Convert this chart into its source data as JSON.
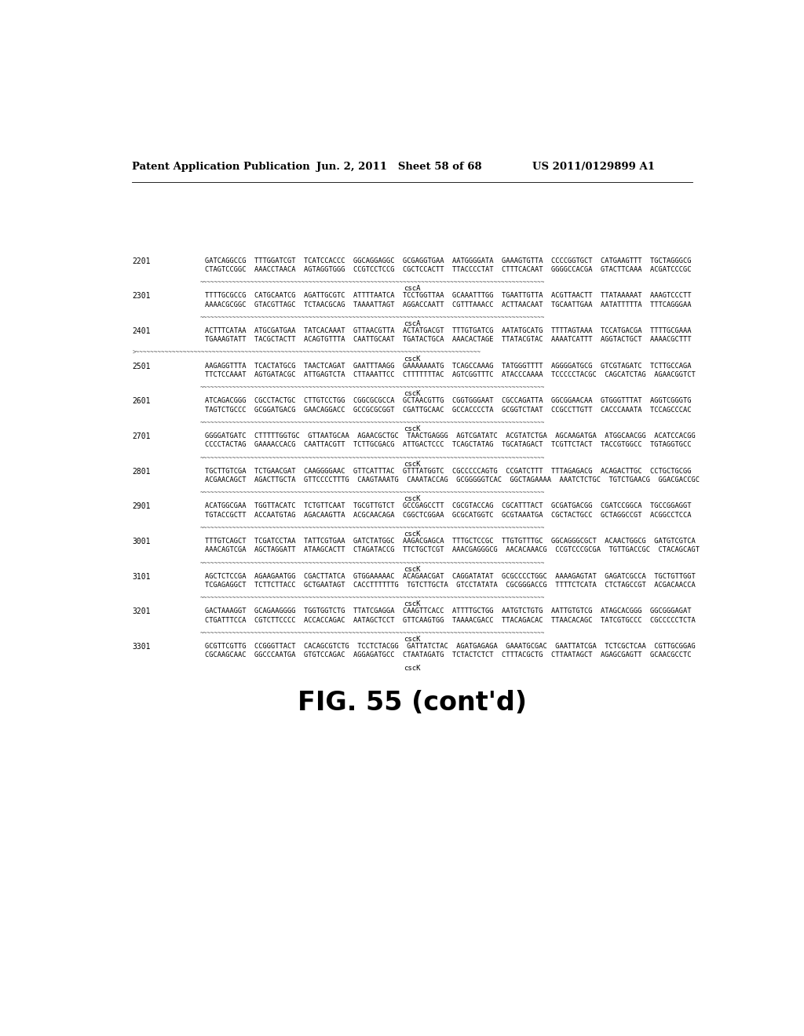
{
  "header_left": "Patent Application Publication",
  "header_mid": "Jun. 2, 2011   Sheet 58 of 68",
  "header_right": "US 2011/0129899 A1",
  "figure_caption": "FIG. 55 (cont'd)",
  "background_color": "#ffffff",
  "text_color": "#000000",
  "sequences": [
    {
      "number": "2201",
      "line1": "GATCAGGCCG  TTTGGATCGT  TCATCCACCC  GGCAGGAGGC  GCGAGGTGAA  AATGGGGATA  GAAAGTGTTA  CCCCGGTGCT  CATGAAGTTT  TGCTAGGGCG",
      "line2": "CTAGTCCGGC  AAACCTAACA  AGTAGGTGGG  CCGTCCTCCG  CGCTCCACTT  TTACCCCTAT  CTTTCACAAT  GGGGCCACGA  GTACTTCAAA  ACGATCCCGC",
      "has_separator": true,
      "separator_prefix": "",
      "label": "cscA",
      "label_on_separator": false
    },
    {
      "number": "2301",
      "line1": "TTTTGCGCCG  CATGCAATCG  AGATTGCGTC  ATTTTAATCA  TCCTGGTTAA  GCAAATTTGG  TGAATTGTTA  ACGTTAACTT  TTATAAAAAT  AAAGTCCCTT",
      "line2": "AAAACGCGGC  GTACGTTAGC  TCTAACGCAG  TAAAATTAGT  AGGACCAATT  CGTTTAAACC  ACTTAACAAT  TGCAATTGAA  AATATTTTTA  TTTCAGGGAA",
      "has_separator": true,
      "separator_prefix": "",
      "label": "cscA",
      "label_on_separator": false
    },
    {
      "number": "2401",
      "line1": "ACTTTCATAA  ATGCGATGAA  TATCACAAAT  GTTAACGTTA  ACTATGACGT  TTTGTGATCG  AATATGCATG  TTTTAGTAAA  TCCATGACGA  TTTTGCGAAA",
      "line2": "TGAAAGTATT  TACGCTACTT  ACAGTGTTTA  CAATTGCAAT  TGATACTGCA  AAACACTAGE  TTATACGTAC  AAAATCATTT  AGGTACTGCT  AAAACGCTTT",
      "has_separator": true,
      "separator_prefix": ">",
      "label": "cscK",
      "label_on_separator": false
    },
    {
      "number": "2501",
      "line1": "AAGAGGTTTA  TCACTATGCG  TAACTCAGAT  GAATTTAAGG  GAAAAAAATG  TCAGCCAAAG  TATGGGTTTT  AGGGGATGCG  GTCGTAGATC  TCTTGCCAGA",
      "line2": "TTCTCCAAAT  AGTGATACGC  ATTGAGTCTA  CTTAAATTCC  CTTTTTTTAC  AGTCGGTTTC  ATACCCAAAA  TCCCCCTACGC  CAGCATCTAG  AGAACGGTCT",
      "has_separator": true,
      "separator_prefix": "",
      "label": "cscK",
      "label_on_separator": false
    },
    {
      "number": "2601",
      "line1": "ATCAGACGGG  CGCCTACTGC  CTTGTCCTGG  CGGCGCGCCA  GCTAACGTTG  CGGTGGGAAT  CGCCAGATTA  GGCGGAACAA  GTGGGTTTAT  AGGTCGGGTG",
      "line2": "TAGTCTGCCC  GCGGATGACG  GAACAGGACC  GCCGCGCGGT  CGATTGCAAC  GCCACCCCTA  GCGGTCTAAT  CCGCCTTGTT  CACCCAAATA  TCCAGCCCAC",
      "has_separator": true,
      "separator_prefix": "",
      "label": "cscK",
      "label_on_separator": false
    },
    {
      "number": "2701",
      "line1": "GGGGATGATC  CTTTTTGGTGC  GTTAATGCAA  AGAACGCTGC  TAACTGAGGG  AGTCGATATC  ACGTATCTGA  AGCAAGATGA  ATGGCAACGG  ACATCCACGG",
      "line2": "CCCCTACTAG  GAAAACCACG  CAATTACGTT  TCTTGCGACG  ATTGACTCCC  TCAGCTATAG  TGCATAGACT  TCGTTCTACT  TACCGTGGCC  TGTAGGTGCC",
      "has_separator": true,
      "separator_prefix": "",
      "label": "cscK",
      "label_on_separator": false
    },
    {
      "number": "2801",
      "line1": "TGCTTGTCGA  TCTGAACGAT  CAAGGGGAAC  GTTCATTTAC  GTTTATGGTC  CGCCCCCAGTG  CCGATCTTT  TTTAGAGACG  ACAGACTTGC  CCTGCTGCGG",
      "line2": "ACGAACAGCT  AGACTTGCTA  GTTCCCCTTTG  CAAGTAAATG  CAAATACCAG  GCGGGGGTCAC  GGCTAGAAAA  AAATCTCTGC  TGTCTGAACG  GGACGACCGC",
      "has_separator": true,
      "separator_prefix": "",
      "label": "cscK",
      "label_on_separator": false
    },
    {
      "number": "2901",
      "line1": "ACATGGCGAA  TGGTTACATC  TCTGTTCAAT  TGCGTTGTCT  GCCGAGCCTT  CGCGTACCAG  CGCATTTACT  GCGATGACGG  CGATCCGGCA  TGCCGGAGGT",
      "line2": "TGTACCGCTT  ACCAATGTAG  AGACAAGTTA  ACGCAACAGA  CGGCTCGGAA  GCGCATGGTC  GCGTAAATGA  CGCTACTGCC  GCTAGGCCGT  ACGGCCTCCA",
      "has_separator": true,
      "separator_prefix": "",
      "label": "cscK",
      "label_on_separator": false
    },
    {
      "number": "3001",
      "line1": "TTTGTCAGCT  TCGATCCTAA  TATTCGTGAA  GATCTATGGC  AAGACGAGCA  TTTGCTCCGC  TTGTGTTTGC  GGCAGGGCGCT  ACAACTGGCG  GATGTCGTCA",
      "line2": "AAACAGTCGA  AGCTAGGATT  ATAAGCACTT  CTAGATACCG  TTCTGCTCGT  AAACGAGGGCG  AACACAAACG  CCGTCCCGCGA  TGTTGACCGC  CTACAGCAGT",
      "has_separator": true,
      "separator_prefix": "",
      "label": "cscK",
      "label_on_separator": false
    },
    {
      "number": "3101",
      "line1": "AGCTCTCCGA  AGAAGAATGG  CGACTTATCA  GTGGAAAAAC  ACAGAACGAT  CAGGATATAT  GCGCCCCTGGC  AAAAGAGTAT  GAGATCGCCA  TGCTGTTGGT",
      "line2": "TCGAGAGGCT  TCTTCTTACC  GCTGAATAGТ  CACCTTTTTTG  TGTCTTGCTA  GTCCTATATA  CGCGGGACCG  TTTTCTCATA  CTCTAGCCGT  ACGACAACCA",
      "has_separator": true,
      "separator_prefix": "",
      "label": "cscK",
      "label_on_separator": false
    },
    {
      "number": "3201",
      "line1": "GACTAAAGGТ  GCAGAAGGGG  TGGTGGTCTG  TTATCGAGGA  CAAGTТCACC  ATTTTGCTGG  AATGTCTGTG  AATTGTGTCG  ATAGCACGGG  GGCGGGAGAT",
      "line2": "CTGATTTCCA  CGTCTTCCCC  ACCACCAGAC  AATAGCTCCT  GTTCAAGTGG  TAAAACGACC  TTACAGACAC  TTAACACAGC  TATCGTGCCC  CGCCCCCTCTA",
      "has_separator": true,
      "separator_prefix": "",
      "label": "cscK",
      "label_on_separator": false
    },
    {
      "number": "3301",
      "line1": "GCGTTCGTTG  CCGGGTTACT  CACAGCGTCTG  TCCTCTACGG  GATTATCTAC  AGATGAGAGA  GAAATGCGAC  GAATTATCGA  TCTCGCTCAA  CGTTGCGGAG",
      "line2": "CGCAAGCAAC  GGCCCAATGA  GTGTCCAGAC  AGGAGATGCC  CTAATAGATG  TCTACTCTCT  CTTTACGCTG  CTTAATAGCT  AGAGCGAGTT  GCAACGCCTC",
      "has_separator": false,
      "separator_prefix": "",
      "label": "cscK",
      "label_on_separator": false
    }
  ]
}
